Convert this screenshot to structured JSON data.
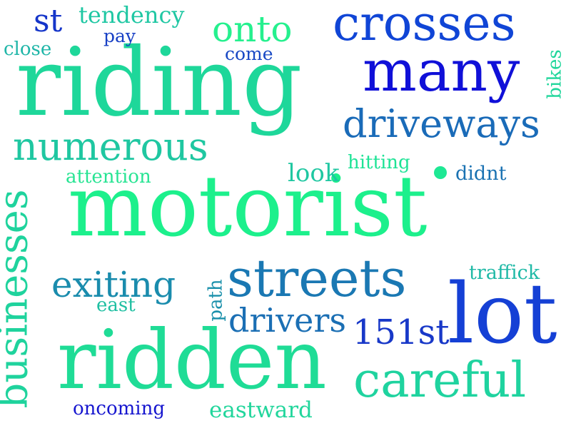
{
  "words": [
    {
      "id": "motorist",
      "text": "motorist",
      "color": "#1cf08c"
    },
    {
      "id": "riding",
      "text": "riding",
      "color": "#1ed79a"
    },
    {
      "id": "ridden",
      "text": "ridden",
      "color": "#1fdc96"
    },
    {
      "id": "crosses",
      "text": "crosses",
      "color": "#1045d6"
    },
    {
      "id": "many",
      "text": "many",
      "color": "#1010d8"
    },
    {
      "id": "lot",
      "text": "lot",
      "color": "#1540d5"
    },
    {
      "id": "streets",
      "text": "streets",
      "color": "#1a78b3"
    },
    {
      "id": "careful",
      "text": "careful",
      "color": "#1fd39f"
    },
    {
      "id": "driveways",
      "text": "driveways",
      "color": "#1a6bb8"
    },
    {
      "id": "numerous",
      "text": "numerous",
      "color": "#1fc7a1"
    },
    {
      "id": "businesses",
      "text": "businesses",
      "color": "#1fd39d"
    },
    {
      "id": "exiting",
      "text": "exiting",
      "color": "#1a8cad"
    },
    {
      "id": "drivers",
      "text": "drivers",
      "color": "#1b6fb4"
    },
    {
      "id": "151st",
      "text": "151st",
      "color": "#1838c8"
    },
    {
      "id": "onto",
      "text": "onto",
      "color": "#25f08e"
    },
    {
      "id": "st",
      "text": "st",
      "color": "#1535c9"
    },
    {
      "id": "tendency",
      "text": "tendency",
      "color": "#1fc7a3"
    },
    {
      "id": "pay",
      "text": "pay",
      "color": "#1840c5"
    },
    {
      "id": "close",
      "text": "close",
      "color": "#1fb6a8"
    },
    {
      "id": "come",
      "text": "come",
      "color": "#1848c4"
    },
    {
      "id": "bikes",
      "text": "bikes",
      "color": "#20d69b"
    },
    {
      "id": "hitting",
      "text": "hitting",
      "color": "#1ee396"
    },
    {
      "id": "look",
      "text": "look",
      "color": "#1fc7a1"
    },
    {
      "id": "didnt",
      "text": "didnt",
      "color": "#1a72b2"
    },
    {
      "id": "attention",
      "text": "attention",
      "color": "#27e493"
    },
    {
      "id": "traffick",
      "text": "traffick",
      "color": "#1fb9a6"
    },
    {
      "id": "east",
      "text": "east",
      "color": "#1fbfa2"
    },
    {
      "id": "path",
      "text": "path",
      "color": "#1a90ab"
    },
    {
      "id": "oncoming",
      "text": "oncoming",
      "color": "#1616cf"
    },
    {
      "id": "eastward",
      "text": "eastward",
      "color": "#22d69c"
    }
  ],
  "dot_color": "#1ee894"
}
